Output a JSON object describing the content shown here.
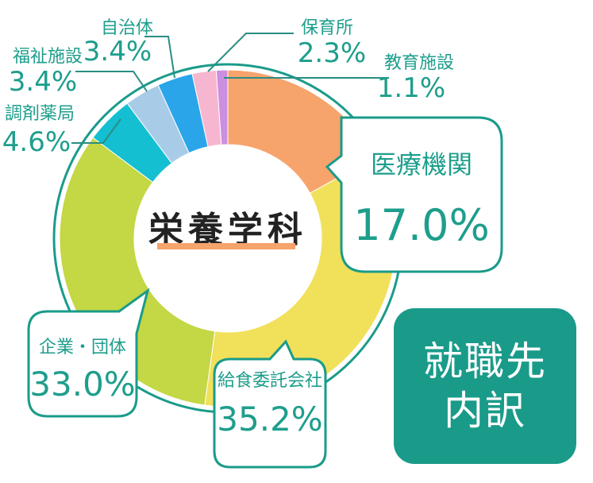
{
  "chart_data": {
    "type": "pie",
    "style": "donut",
    "center_label": "栄養学科",
    "slices": [
      {
        "label": "医療機関",
        "value": 17.0,
        "display": "17.0%",
        "color": "#f7a36c"
      },
      {
        "label": "給食委託会社",
        "value": 35.2,
        "display": "35.2%",
        "color": "#f1e05a"
      },
      {
        "label": "企業・団体",
        "value": 33.0,
        "display": "33.0%",
        "color": "#c4d744"
      },
      {
        "label": "調剤薬局",
        "value": 4.6,
        "display": "4.6%",
        "color": "#14bfd1"
      },
      {
        "label": "福祉施設",
        "value": 3.4,
        "display": "3.4%",
        "color": "#a8cce8"
      },
      {
        "label": "自治体",
        "value": 3.4,
        "display": "3.4%",
        "color": "#2aa5ea"
      },
      {
        "label": "保育所",
        "value": 2.3,
        "display": "2.3%",
        "color": "#f7b6d0"
      },
      {
        "label": "教育施設",
        "value": 1.1,
        "display": "1.1%",
        "color": "#cc8fe0"
      }
    ]
  },
  "colors": {
    "accent": "#1a9b8a",
    "text": "#1e9e8c",
    "underline": "#f7a36c"
  },
  "badge": {
    "line1": "就職先",
    "line2": "内訳"
  }
}
